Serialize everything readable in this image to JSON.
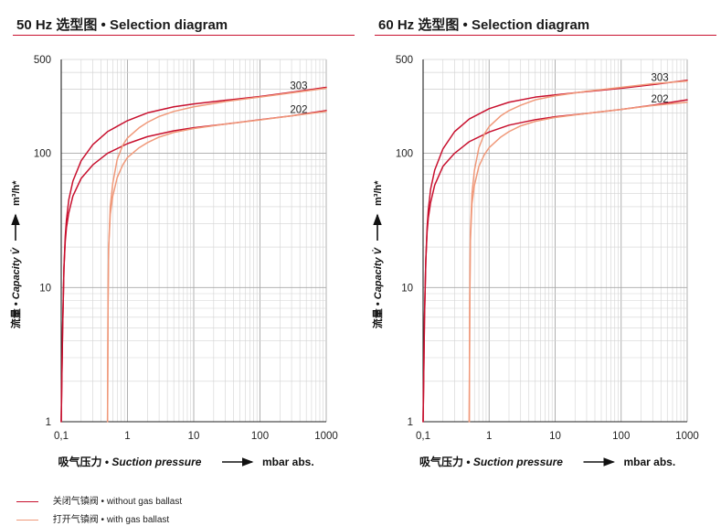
{
  "chart_data": [
    {
      "type": "line",
      "title": "50 Hz 选型图 • Selection diagram",
      "xlabel_cn": "吸气压力 •",
      "xlabel_en": "Suction pressure",
      "xlabel_unit": "mbar abs.",
      "ylabel_cn": "流量 •",
      "ylabel_en": "Capacity V̇",
      "ylabel_unit": "m³/h*",
      "xscale": "log",
      "yscale": "log",
      "xlim": [
        0.1,
        1000
      ],
      "ylim": [
        1,
        500
      ],
      "xticks": [
        0.1,
        1,
        10,
        100,
        1000
      ],
      "xtick_labels": [
        "0,1",
        "1",
        "10",
        "100",
        "1000"
      ],
      "yticks": [
        1,
        10,
        100,
        500
      ],
      "ytick_labels": [
        "1",
        "10",
        "100",
        "500"
      ],
      "grid": true,
      "series": [
        {
          "name": "303",
          "variant": "without gas ballast",
          "color": "#c8102e",
          "label": "303",
          "x": [
            0.1,
            0.102,
            0.105,
            0.11,
            0.115,
            0.12,
            0.13,
            0.15,
            0.2,
            0.3,
            0.5,
            1,
            2,
            5,
            10,
            30,
            100,
            300,
            1000
          ],
          "y": [
            1,
            2,
            5,
            14,
            24,
            32,
            45,
            62,
            88,
            116,
            145,
            175,
            200,
            222,
            233,
            248,
            265,
            285,
            310
          ]
        },
        {
          "name": "202",
          "variant": "without gas ballast",
          "color": "#c8102e",
          "label": "202",
          "x": [
            0.1,
            0.102,
            0.105,
            0.11,
            0.115,
            0.12,
            0.13,
            0.15,
            0.2,
            0.3,
            0.5,
            1,
            2,
            5,
            10,
            30,
            100,
            300,
            1000
          ],
          "y": [
            1,
            2,
            5,
            14,
            22,
            28,
            36,
            48,
            65,
            82,
            100,
            118,
            133,
            147,
            155,
            165,
            178,
            190,
            208
          ]
        },
        {
          "name": "303",
          "variant": "with gas ballast",
          "color": "#f0997a",
          "x": [
            0.5,
            0.505,
            0.51,
            0.52,
            0.55,
            0.6,
            0.7,
            0.85,
            1,
            1.5,
            2,
            3,
            5,
            10,
            30,
            100,
            300,
            1000
          ],
          "y": [
            1,
            3,
            8,
            20,
            40,
            60,
            90,
            115,
            130,
            155,
            170,
            188,
            205,
            222,
            243,
            262,
            282,
            305
          ]
        },
        {
          "name": "202",
          "variant": "with gas ballast",
          "color": "#f0997a",
          "x": [
            0.5,
            0.505,
            0.51,
            0.52,
            0.55,
            0.6,
            0.7,
            0.85,
            1,
            1.5,
            2,
            3,
            5,
            10,
            30,
            100,
            300,
            1000
          ],
          "y": [
            1,
            3,
            8,
            20,
            35,
            48,
            66,
            82,
            93,
            110,
            120,
            132,
            143,
            153,
            165,
            177,
            190,
            205
          ]
        }
      ]
    },
    {
      "type": "line",
      "title": "60 Hz 选型图 • Selection diagram",
      "xlabel_cn": "吸气压力 •",
      "xlabel_en": "Suction pressure",
      "xlabel_unit": "mbar abs.",
      "ylabel_cn": "流量 •",
      "ylabel_en": "Capacity V̇",
      "ylabel_unit": "m³/h*",
      "xscale": "log",
      "yscale": "log",
      "xlim": [
        0.1,
        1000
      ],
      "ylim": [
        1,
        500
      ],
      "xticks": [
        0.1,
        1,
        10,
        100,
        1000
      ],
      "xtick_labels": [
        "0,1",
        "1",
        "10",
        "100",
        "1000"
      ],
      "yticks": [
        1,
        10,
        100,
        500
      ],
      "ytick_labels": [
        "1",
        "10",
        "100",
        "500"
      ],
      "grid": true,
      "series": [
        {
          "name": "303",
          "variant": "without gas ballast",
          "color": "#c8102e",
          "label": "303",
          "x": [
            0.1,
            0.102,
            0.105,
            0.11,
            0.115,
            0.12,
            0.13,
            0.15,
            0.2,
            0.3,
            0.5,
            1,
            2,
            5,
            10,
            30,
            100,
            300,
            1000
          ],
          "y": [
            1,
            2,
            6,
            16,
            28,
            38,
            54,
            75,
            108,
            145,
            180,
            215,
            240,
            262,
            272,
            288,
            305,
            325,
            350
          ]
        },
        {
          "name": "202",
          "variant": "without gas ballast",
          "color": "#c8102e",
          "label": "202",
          "x": [
            0.1,
            0.102,
            0.105,
            0.11,
            0.115,
            0.12,
            0.13,
            0.15,
            0.2,
            0.3,
            0.5,
            1,
            2,
            5,
            10,
            30,
            100,
            300,
            1000
          ],
          "y": [
            1,
            2,
            6,
            16,
            26,
            33,
            43,
            58,
            80,
            100,
            122,
            144,
            162,
            178,
            187,
            198,
            212,
            228,
            250
          ]
        },
        {
          "name": "303",
          "variant": "with gas ballast",
          "color": "#f0997a",
          "x": [
            0.5,
            0.505,
            0.51,
            0.52,
            0.55,
            0.6,
            0.7,
            0.85,
            1,
            1.5,
            2,
            3,
            5,
            10,
            30,
            100,
            300,
            1000
          ],
          "y": [
            1,
            3,
            8,
            25,
            50,
            75,
            110,
            140,
            158,
            190,
            208,
            228,
            250,
            268,
            290,
            310,
            330,
            345
          ]
        },
        {
          "name": "202",
          "variant": "with gas ballast",
          "color": "#f0997a",
          "x": [
            0.5,
            0.505,
            0.51,
            0.52,
            0.55,
            0.6,
            0.7,
            0.85,
            1,
            1.5,
            2,
            3,
            5,
            10,
            30,
            100,
            300,
            1000
          ],
          "y": [
            1,
            3,
            8,
            22,
            42,
            58,
            80,
            98,
            110,
            132,
            145,
            160,
            173,
            185,
            198,
            212,
            227,
            240
          ]
        }
      ]
    }
  ],
  "legend": [
    {
      "text": "关闭气镇阀 • without gas ballast",
      "color": "#c8102e"
    },
    {
      "text": "打开气镇阀 • with gas ballast",
      "color": "#f0997a"
    }
  ]
}
